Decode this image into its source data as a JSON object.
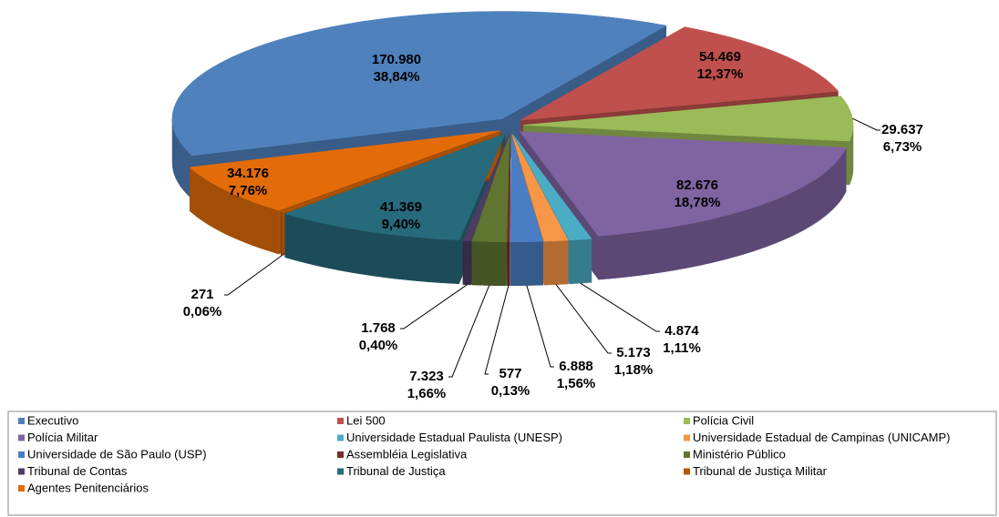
{
  "chart_data": {
    "type": "pie",
    "categories": [
      "Executivo",
      "Lei 500",
      "Polícia Civil",
      "Polícia Militar",
      "Universidade Estadual Paulista (UNESP)",
      "Universidade Estadual de Campinas (UNICAMP)",
      "Universidade de São Paulo (USP)",
      "Assembléia Legislativa",
      "Ministério Público",
      "Tribunal de Contas",
      "Tribunal de Justiça",
      "Tribunal de Justiça Militar",
      "Agentes Penitenciários"
    ],
    "values": [
      170980,
      54469,
      29637,
      82676,
      4874,
      5173,
      6888,
      577,
      7323,
      1768,
      41369,
      271,
      34176
    ],
    "value_labels": [
      "170.980",
      "54.469",
      "29.637",
      "82.676",
      "4.874",
      "5.173",
      "6.888",
      "577",
      "7.323",
      "1.768",
      "41.369",
      "271",
      "34.176"
    ],
    "percents": [
      38.84,
      12.37,
      6.73,
      18.78,
      1.11,
      1.18,
      1.56,
      0.13,
      1.66,
      0.4,
      9.4,
      0.06,
      7.76
    ],
    "percent_labels": [
      "38,84%",
      "12,37%",
      "6,73%",
      "18,78%",
      "1,11%",
      "1,18%",
      "1,56%",
      "0,13%",
      "1,66%",
      "0,40%",
      "9,40%",
      "0,06%",
      "7,76%"
    ],
    "colors": [
      "#4f81bd",
      "#c0504d",
      "#9bbb59",
      "#8064a2",
      "#4bacc6",
      "#f79646",
      "#4a7ec4",
      "#772c2a",
      "#5f7530",
      "#4d3b62",
      "#276a7c",
      "#b65708",
      "#e36c09"
    ],
    "legend": "bottom"
  }
}
